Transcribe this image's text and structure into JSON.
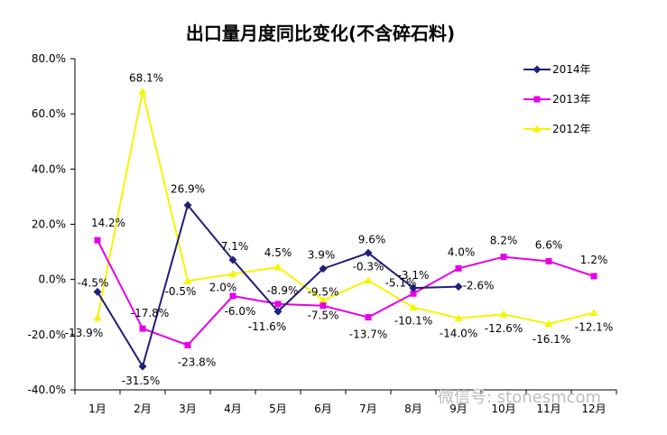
{
  "chart_data": {
    "type": "line",
    "title": "出口量月度同比变化(不含碎石料)",
    "categories": [
      "1月",
      "2月",
      "3月",
      "4月",
      "5月",
      "6月",
      "7月",
      "8月",
      "9月",
      "10月",
      "11月",
      "12月"
    ],
    "ylim": [
      -40,
      80
    ],
    "yticks": [
      "80.0%",
      "60.0%",
      "40.0%",
      "20.0%",
      "0.0%",
      "-20.0%",
      "-40.0%"
    ],
    "ytick_values": [
      80,
      60,
      40,
      20,
      0,
      -20,
      -40
    ],
    "grid": false,
    "legend_position": "top-right",
    "series": [
      {
        "name": "2014年",
        "color": "#1f1f7a",
        "marker": "diamond",
        "values": [
          -4.5,
          -31.5,
          26.9,
          7.1,
          -11.6,
          3.9,
          9.6,
          -3.1,
          -2.6,
          null,
          null,
          null
        ],
        "labels": [
          "-4.5%",
          "-31.5%",
          "26.9%",
          "7.1%",
          "-11.6%",
          "3.9%",
          "9.6%",
          "-3.1%",
          "-2.6%",
          "",
          "",
          ""
        ]
      },
      {
        "name": "2013年",
        "color": "#e600e6",
        "marker": "square",
        "values": [
          14.2,
          -17.8,
          -23.8,
          -6.0,
          -8.9,
          -9.5,
          -13.7,
          -5.1,
          4.0,
          8.2,
          6.6,
          1.2
        ],
        "labels": [
          "14.2%",
          "-17.8%",
          "-23.8%",
          "-6.0%",
          "-8.9%",
          "-9.5%",
          "-13.7%",
          "-5.1%",
          "4.0%",
          "8.2%",
          "6.6%",
          "1.2%"
        ]
      },
      {
        "name": "2012年",
        "color": "#f5f500",
        "marker": "triangle",
        "values": [
          -13.9,
          68.1,
          -0.5,
          2.0,
          4.5,
          -7.5,
          -0.3,
          -10.1,
          -14.0,
          -12.6,
          -16.1,
          -12.1
        ],
        "labels": [
          "-13.9%",
          "68.1%",
          "-0.5%",
          "2.0%",
          "4.5%",
          "-7.5%",
          "-0.3%",
          "-10.1%",
          "-14.0%",
          "-12.6%",
          "-16.1%",
          "-12.1%"
        ]
      }
    ]
  },
  "watermark": "微信号: stonesmcom"
}
